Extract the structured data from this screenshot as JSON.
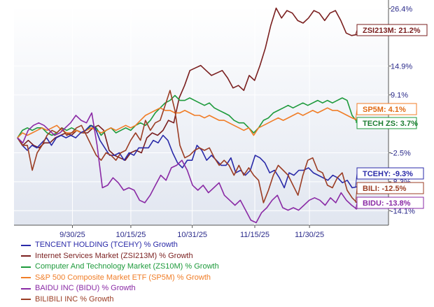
{
  "chart_data": {
    "type": "line",
    "x_tick_labels": [
      "9/30/25",
      "10/15/25",
      "10/31/25",
      "11/15/25",
      "11/30/25"
    ],
    "y_tick_labels": [
      "26.4%",
      "14.9%",
      "9.1%",
      "-2.5%",
      "-8.3%",
      "-14.1%"
    ],
    "ylim": [
      -17,
      27
    ],
    "series": [
      {
        "name": "TENCENT HOLDING (TCEHY) % Growth",
        "tag": "TCEHY: -9.3%",
        "color": "#2a2aa8",
        "tag_color": "#2a2aa8",
        "values": [
          0.5,
          -1,
          -2,
          -1,
          -1.5,
          -0.5,
          0.5,
          -1,
          0.5,
          1,
          0.5,
          1,
          0.5,
          1.5,
          2,
          3,
          2.5,
          0,
          -1.5,
          -3,
          -3,
          -2.5,
          -4,
          -2.5,
          -3,
          -1.5,
          -1.5,
          -1.5,
          0,
          -0.5,
          1,
          0,
          -2.5,
          -4.5,
          -5.5,
          -4,
          -4,
          -1,
          -2,
          -4,
          -3,
          -4,
          -5,
          -5,
          -3.5,
          -6.5,
          -6,
          -7,
          -6,
          -3,
          -3.5,
          -4.5,
          -6.5,
          -6,
          -7.5,
          -9.5,
          -6.5,
          -7,
          -6,
          -6,
          -5.5,
          -6.5,
          -7,
          -7.5,
          -8,
          -7,
          -7.5,
          -8.5,
          -8,
          -9.5,
          -9.3
        ]
      },
      {
        "name": "Internet Services Market (ZSI213M) % Growth",
        "tag": "ZSI213M: 21.2%",
        "color": "#7a1f1f",
        "tag_color": "#7a1f1f",
        "values": [
          0.5,
          -1,
          0,
          -1,
          -1.5,
          -0.5,
          -0.5,
          0.5,
          1,
          1.5,
          1,
          2,
          1.5,
          1.5,
          2.5,
          3,
          2,
          -2,
          -3,
          -3.5,
          -4,
          -2.5,
          -2,
          -2.5,
          0.5,
          1.5,
          1,
          2,
          4,
          3.5,
          8.5,
          11,
          14,
          14.5,
          15,
          14,
          13,
          13.5,
          14,
          12.5,
          10.5,
          11,
          10,
          13,
          12,
          15,
          18.5,
          23,
          26.5,
          24.5,
          26,
          25.5,
          24,
          23.5,
          24.5,
          26,
          25.5,
          24,
          25.5,
          26,
          24,
          21.5,
          21,
          21.2
        ]
      },
      {
        "name": "Computer And Technology Market (ZS10M) % Growth",
        "tag": "TECH ZS: 3.7%",
        "color": "#1d9a3b",
        "tag_color": "#1d7d32",
        "values": [
          0.5,
          2,
          2.5,
          2,
          2.5,
          2.5,
          1.5,
          1,
          1.5,
          2.5,
          2,
          2.5,
          2,
          1.5,
          2,
          3,
          2.5,
          1,
          2,
          2.5,
          1.5,
          2,
          2.5,
          2,
          3,
          3.5,
          3,
          4,
          5.5,
          6.5,
          7.5,
          8,
          9,
          8,
          8,
          8.5,
          8,
          7.5,
          7,
          7.5,
          6.5,
          6,
          5.5,
          5,
          4,
          3.5,
          3.5,
          2.5,
          1.5,
          2.5,
          4,
          4.5,
          5.5,
          6,
          6.5,
          7,
          6.5,
          7,
          7.5,
          7,
          7.5,
          8,
          7.5,
          8,
          7.5,
          8,
          8.5,
          8,
          5,
          3.7
        ]
      },
      {
        "name": "S&P 500 Composite Market ETF (SP5M) % Growth",
        "tag": "SP5M: 4.1%",
        "color": "#f07d27",
        "tag_color": "#e06a14",
        "values": [
          0.5,
          1.5,
          1,
          1.5,
          2,
          2.5,
          2,
          2.5,
          3,
          2,
          1.5,
          1.5,
          2,
          1.5,
          2,
          2.5,
          2,
          1.5,
          2,
          2.5,
          2,
          2.5,
          3,
          2.5,
          3,
          4,
          5,
          5.5,
          6,
          6.5,
          6,
          6,
          5.5,
          5.5,
          6,
          5.5,
          5,
          5,
          4.5,
          5,
          4.5,
          4,
          4,
          3.5,
          3,
          2.5,
          2,
          2.5,
          1,
          2.5,
          3,
          3.5,
          4,
          4.5,
          4,
          4.5,
          5,
          5.5,
          5,
          5.5,
          6,
          5.5,
          6,
          6.5,
          6,
          6,
          5.5,
          5,
          4.5,
          4.1
        ]
      },
      {
        "name": "BAIDU INC (BIDU) % Growth",
        "tag": "BIDU: -13.8%",
        "color": "#8a2aa5",
        "tag_color": "#8a2aa5",
        "values": [
          0.5,
          -0.5,
          2,
          3,
          3.5,
          3,
          2,
          1,
          1.5,
          2.5,
          3.5,
          5,
          4,
          3.5,
          5.5,
          -1,
          -9.5,
          -9,
          -7.5,
          -8.5,
          -10,
          -9.5,
          -10,
          -12,
          -12.5,
          -11,
          -9,
          -7,
          -8,
          -5.5,
          -5,
          -4,
          -6,
          -9,
          -10,
          -9,
          -10.5,
          -9.5,
          -8.5,
          -11,
          -12,
          -13,
          -12,
          -14,
          -16,
          -16.5,
          -14.5,
          -13.5,
          -12,
          -11,
          -13.5,
          -14,
          -13.5,
          -14,
          -13,
          -12,
          -11.5,
          -12,
          -13,
          -11.5,
          -12.5,
          -10.5,
          -12,
          -13,
          -13.8
        ]
      },
      {
        "name": "BILIBILI INC % Growth",
        "tag": "BILI: -12.5%",
        "color": "#9b3d24",
        "tag_color": "#9b3d24",
        "values": [
          0.5,
          -1,
          -1,
          -6,
          -2.5,
          -1,
          1,
          2,
          1.5,
          2.5,
          1,
          1.5,
          2.5,
          3,
          1,
          -1,
          -3,
          -4,
          -2.5,
          -3,
          -4,
          -2.5,
          -2,
          0,
          1.5,
          0,
          4,
          2,
          3.5,
          4,
          7,
          10,
          6,
          -1,
          -3.5,
          -3,
          -2,
          -1.5,
          -2,
          -1.5,
          -3.5,
          -5,
          -4,
          -5,
          -7,
          -5,
          -7,
          -5.5,
          -7,
          -8,
          -12.5,
          -10,
          -7,
          -5,
          -6,
          -7,
          -9,
          -11,
          -7,
          -4,
          -3.5,
          -6,
          -6.5,
          -9,
          -9.5,
          -7.5,
          -6.5,
          -10,
          -11.5,
          -12.5
        ]
      }
    ]
  }
}
